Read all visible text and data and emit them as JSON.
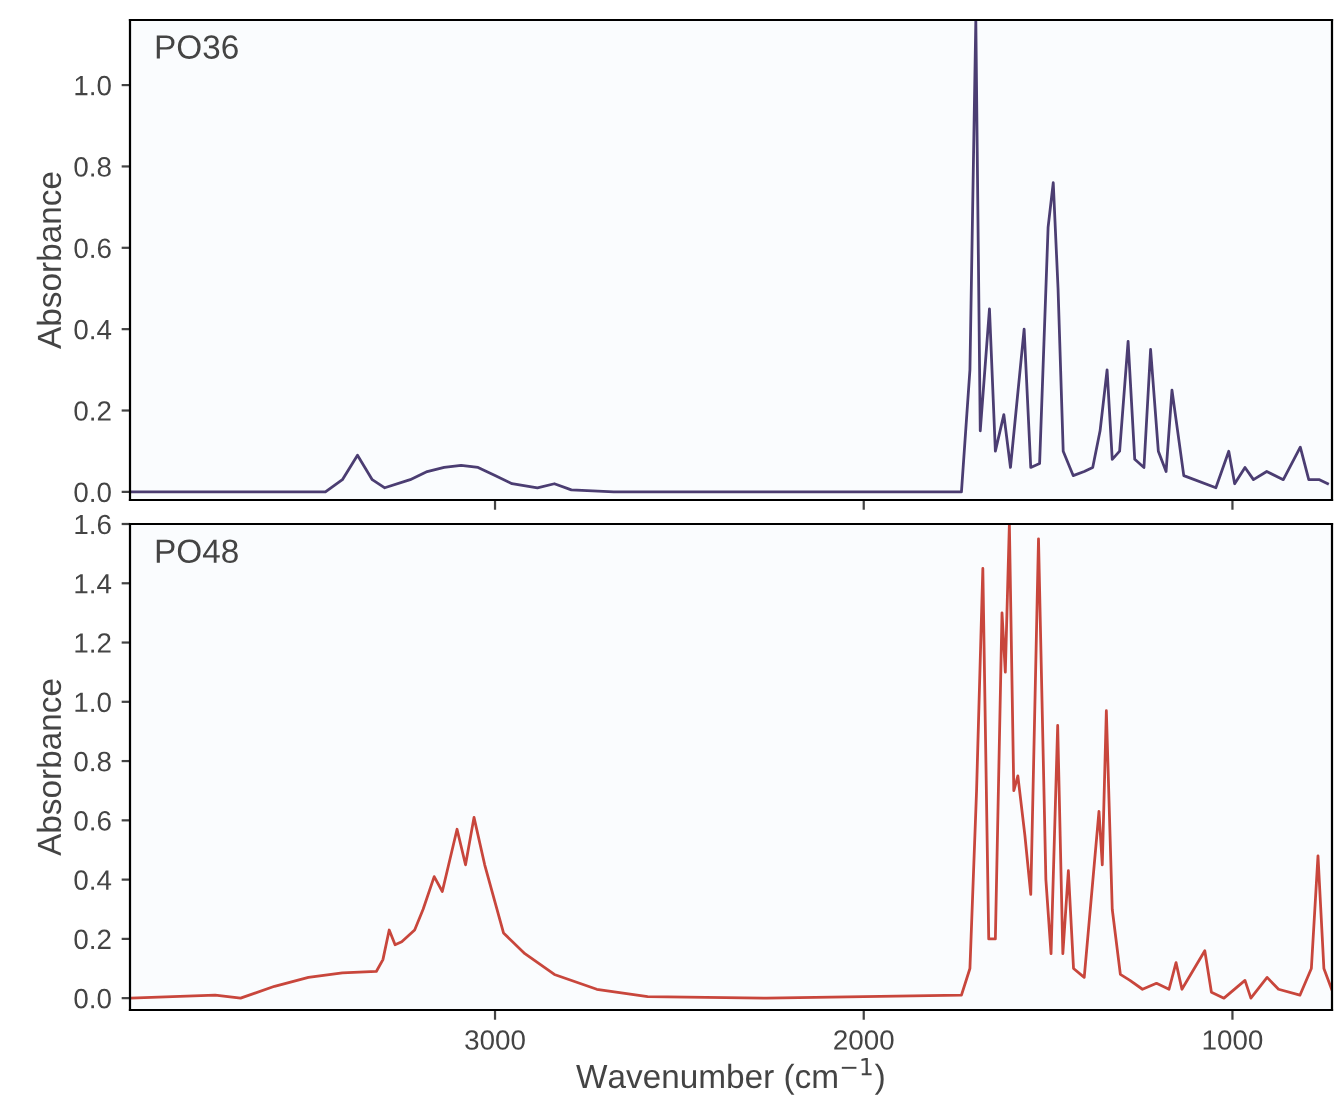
{
  "chart_data": [
    {
      "type": "line",
      "title": "PO36",
      "ylabel": "Absorbance",
      "color": "#4b3d72",
      "tick_labels": "y",
      "xlim": [
        3990,
        730
      ],
      "ylim": [
        -0.02,
        1.16
      ],
      "yticks": [
        {
          "value": 0,
          "label": "0.0"
        },
        {
          "value": 0.2,
          "label": "0.2"
        },
        {
          "value": 0.4,
          "label": "0.4"
        },
        {
          "value": 0.6,
          "label": "0.6"
        },
        {
          "value": 0.8,
          "label": "0.8"
        },
        {
          "value": 1,
          "label": "1.0"
        }
      ],
      "xticks": [
        3000,
        2000,
        1000
      ],
      "x": [
        3989,
        3460,
        3414,
        3373,
        3333,
        3299,
        3230,
        3184,
        3138,
        3092,
        3046,
        3000,
        2954,
        2885,
        2839,
        2793,
        2678,
        1735,
        1712,
        1696,
        1684,
        1659,
        1643,
        1620,
        1602,
        1565,
        1547,
        1523,
        1500,
        1486,
        1473,
        1459,
        1432,
        1402,
        1379,
        1359,
        1340,
        1326,
        1306,
        1283,
        1265,
        1240,
        1222,
        1201,
        1180,
        1164,
        1132,
        1045,
        1010,
        994,
        966,
        943,
        907,
        862,
        816,
        793,
        764,
        742
      ],
      "values": [
        0.0,
        0.0,
        0.03,
        0.09,
        0.03,
        0.01,
        0.03,
        0.05,
        0.06,
        0.065,
        0.06,
        0.04,
        0.02,
        0.01,
        0.02,
        0.005,
        0.0,
        0.0,
        0.3,
        1.16,
        0.15,
        0.45,
        0.1,
        0.19,
        0.06,
        0.4,
        0.06,
        0.07,
        0.65,
        0.76,
        0.5,
        0.1,
        0.04,
        0.05,
        0.06,
        0.15,
        0.3,
        0.08,
        0.1,
        0.37,
        0.08,
        0.06,
        0.35,
        0.1,
        0.05,
        0.25,
        0.04,
        0.01,
        0.1,
        0.02,
        0.06,
        0.03,
        0.05,
        0.03,
        0.11,
        0.03,
        0.03,
        0.02
      ]
    },
    {
      "type": "line",
      "title": "PO48",
      "ylabel": "Absorbance",
      "xlabel": "Wavenumber (cm$^{−1}$)",
      "color": "#c8463c",
      "xlim": [
        3990,
        730
      ],
      "ylim": [
        -0.04,
        1.6
      ],
      "yticks": [
        {
          "value": 0,
          "label": "0.0"
        },
        {
          "value": 0.2,
          "label": "0.2"
        },
        {
          "value": 0.4,
          "label": "0.4"
        },
        {
          "value": 0.6,
          "label": "0.6"
        },
        {
          "value": 0.8,
          "label": "0.8"
        },
        {
          "value": 1,
          "label": "1.0"
        },
        {
          "value": 1.2,
          "label": "1.2"
        },
        {
          "value": 1.4,
          "label": "1.4"
        },
        {
          "value": 1.6,
          "label": "1.6"
        }
      ],
      "xticks": [
        3000,
        2000,
        1000
      ],
      "x": [
        3989,
        3759,
        3690,
        3598,
        3506,
        3414,
        3322,
        3304,
        3287,
        3271,
        3253,
        3218,
        3195,
        3165,
        3143,
        3103,
        3080,
        3057,
        3028,
        2977,
        2919,
        2839,
        2724,
        2586,
        2264,
        1735,
        1712,
        1694,
        1677,
        1661,
        1643,
        1625,
        1616,
        1605,
        1593,
        1582,
        1563,
        1547,
        1526,
        1506,
        1492,
        1474,
        1460,
        1445,
        1431,
        1402,
        1362,
        1353,
        1342,
        1326,
        1304,
        1278,
        1244,
        1206,
        1172,
        1153,
        1137,
        1075,
        1057,
        1023,
        966,
        950,
        906,
        875,
        817,
        786,
        768,
        752,
        731
      ],
      "values": [
        0.0,
        0.01,
        0.0,
        0.04,
        0.07,
        0.085,
        0.09,
        0.13,
        0.23,
        0.18,
        0.19,
        0.23,
        0.3,
        0.41,
        0.36,
        0.57,
        0.45,
        0.61,
        0.45,
        0.22,
        0.15,
        0.08,
        0.03,
        0.005,
        0.0,
        0.01,
        0.1,
        0.7,
        1.45,
        0.2,
        0.2,
        1.3,
        1.1,
        1.6,
        0.7,
        0.75,
        0.55,
        0.35,
        1.55,
        0.4,
        0.15,
        0.92,
        0.15,
        0.43,
        0.1,
        0.07,
        0.63,
        0.45,
        0.97,
        0.3,
        0.08,
        0.06,
        0.03,
        0.05,
        0.03,
        0.12,
        0.03,
        0.16,
        0.02,
        0.0,
        0.06,
        0.0,
        0.07,
        0.03,
        0.01,
        0.1,
        0.48,
        0.1,
        0.03
      ]
    }
  ]
}
